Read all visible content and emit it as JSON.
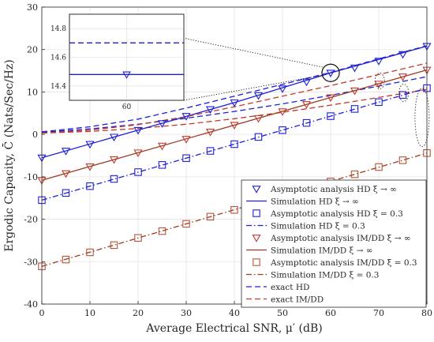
{
  "chart_data": {
    "type": "line",
    "xlabel": "Average Electrical SNR, μ′ (dB)",
    "ylabel": "Ergodic Capacity, C̄ (Nats/Sec/Hz)",
    "xlim": [
      0,
      80
    ],
    "ylim": [
      -40,
      30
    ],
    "xticks": [
      "0",
      "10",
      "20",
      "30",
      "40",
      "50",
      "60",
      "70",
      "80"
    ],
    "yticks": [
      "-40",
      "-30",
      "-20",
      "-10",
      "0",
      "10",
      "20",
      "30"
    ],
    "grid": true,
    "legend_position": "bottom-right",
    "series": [
      {
        "name": "Asymptotic analysis HD ξ → ∞",
        "style": "markers",
        "marker": "triangle-down",
        "color": "#1f1fd6",
        "x": [
          0,
          5,
          10,
          15,
          20,
          25,
          30,
          35,
          40,
          45,
          50,
          55,
          60,
          65,
          70,
          75,
          80
        ],
        "y": [
          -5.5,
          -3.9,
          -2.3,
          -0.6,
          1.0,
          2.6,
          4.3,
          5.9,
          7.5,
          9.2,
          10.8,
          12.4,
          14.5,
          15.7,
          17.3,
          18.9,
          20.8
        ]
      },
      {
        "name": "Simulation HD ξ → ∞",
        "style": "solid",
        "color": "#1f1fd6",
        "x": [
          0,
          20,
          40,
          60,
          80
        ],
        "y": [
          -5.5,
          1.0,
          7.5,
          14.5,
          20.8
        ]
      },
      {
        "name": "Asymptotic analysis HD ξ = 0.3",
        "style": "markers",
        "marker": "square",
        "color": "#1f1fd6",
        "x": [
          0,
          5,
          10,
          15,
          20,
          25,
          30,
          35,
          40,
          45,
          50,
          55,
          60,
          65,
          70,
          75,
          80
        ],
        "y": [
          -15.5,
          -13.8,
          -12.2,
          -10.5,
          -8.9,
          -7.2,
          -5.6,
          -3.9,
          -2.3,
          -0.6,
          1.0,
          2.7,
          4.3,
          6.0,
          7.6,
          9.3,
          10.9
        ]
      },
      {
        "name": "Simulation HD ξ = 0.3",
        "style": "dashdot",
        "color": "#1f1fd6",
        "x": [
          0,
          80
        ],
        "y": [
          -15.5,
          10.9
        ]
      },
      {
        "name": "Asymptotic analysis IM/DD ξ → ∞",
        "style": "markers",
        "marker": "triangle-down",
        "color": "#c0392b",
        "x": [
          0,
          5,
          10,
          15,
          20,
          25,
          30,
          35,
          40,
          45,
          50,
          55,
          60,
          65,
          70,
          75,
          80
        ],
        "y": [
          -10.8,
          -9.2,
          -7.6,
          -5.9,
          -4.3,
          -2.7,
          -1.1,
          0.6,
          2.2,
          3.8,
          5.4,
          7.1,
          8.7,
          10.3,
          11.9,
          13.6,
          15.2
        ]
      },
      {
        "name": "Simulation IM/DD ξ → ∞",
        "style": "solid",
        "color": "#9e3a1f",
        "x": [
          0,
          80
        ],
        "y": [
          -10.8,
          15.2
        ]
      },
      {
        "name": "Asymptotic analysis IM/DD ξ = 0.3",
        "style": "markers",
        "marker": "square",
        "color": "#b5543a",
        "x": [
          0,
          5,
          10,
          15,
          20,
          25,
          30,
          35,
          40,
          45,
          50,
          55,
          60,
          65,
          70,
          75,
          80
        ],
        "y": [
          -31.1,
          -29.5,
          -27.8,
          -26.1,
          -24.4,
          -22.8,
          -21.1,
          -19.4,
          -17.8,
          -16.1,
          -14.4,
          -12.7,
          -11.1,
          -9.4,
          -7.7,
          -6.1,
          -4.4
        ]
      },
      {
        "name": "Simulation IM/DD ξ = 0.3",
        "style": "dashdot",
        "color": "#9e3a1f",
        "x": [
          0,
          80
        ],
        "y": [
          -31.1,
          -4.4
        ]
      },
      {
        "name": "exact HD",
        "style": "dashed",
        "color": "#1f1fd6",
        "x": [
          0,
          10,
          20,
          30,
          40,
          50,
          60,
          70,
          80
        ],
        "y": [
          0.6,
          1.8,
          3.6,
          6.2,
          9.0,
          11.8,
          14.6,
          17.8,
          20.9
        ]
      },
      {
        "name": "exact IM/DD",
        "style": "dashed",
        "color": "#c0392b",
        "x": [
          0,
          10,
          20,
          30,
          40,
          50,
          60,
          70,
          80
        ],
        "y": [
          0.3,
          1.0,
          2.3,
          4.2,
          6.5,
          9.0,
          11.5,
          14.1,
          16.8
        ]
      }
    ],
    "extra_curves": [
      {
        "style": "dashed",
        "color": "#1f1fd6",
        "x": [
          0,
          10,
          20,
          30,
          40,
          50,
          60,
          70,
          80
        ],
        "y": [
          0.5,
          1.3,
          2.4,
          3.8,
          5.4,
          7.2,
          9.2,
          11.4,
          13.6
        ]
      },
      {
        "style": "dashed",
        "color": "#c0392b",
        "x": [
          0,
          10,
          20,
          30,
          40,
          50,
          60,
          70,
          80
        ],
        "y": [
          0.3,
          0.7,
          1.4,
          2.4,
          3.7,
          5.2,
          6.9,
          8.7,
          10.6
        ]
      }
    ],
    "inset": {
      "xlim": [
        55,
        65
      ],
      "ylim": [
        14.3,
        14.9
      ],
      "xticks": [
        "60"
      ],
      "yticks": [
        "14.4",
        "14.6",
        "14.8"
      ],
      "lines": [
        {
          "series": "exact HD",
          "style": "dashed",
          "y": 14.7
        },
        {
          "series": "Simulation HD ξ → ∞",
          "style": "solid",
          "y": 14.48,
          "marker_x": 60
        }
      ]
    }
  }
}
